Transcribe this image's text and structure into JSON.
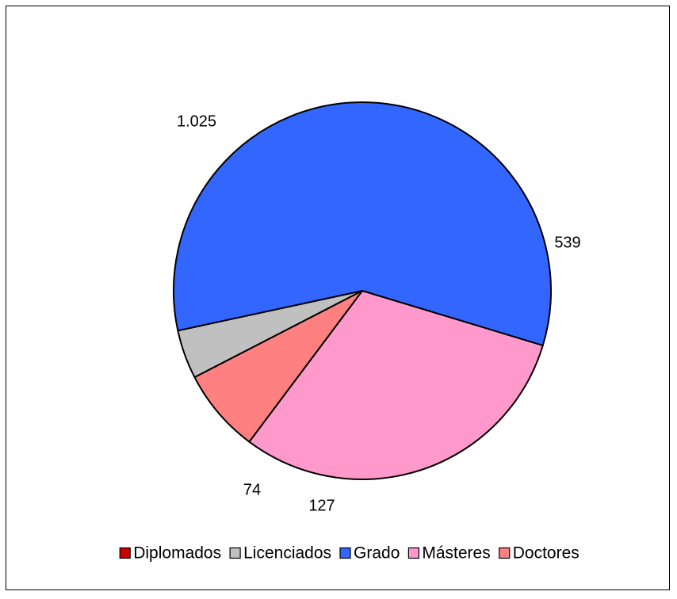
{
  "chart_data": {
    "type": "pie",
    "categories": [
      "Diplomados",
      "Licenciados",
      "Grado",
      "Másteres",
      "Doctores"
    ],
    "values": [
      0,
      74,
      1025,
      539,
      127
    ],
    "data_labels": [
      "",
      "74",
      "1.025",
      "539",
      "127"
    ],
    "colors": [
      "#cc0000",
      "#c0c0c0",
      "#3366ff",
      "#ff99cc",
      "#ff8080"
    ],
    "legend_position": "bottom",
    "title": ""
  }
}
